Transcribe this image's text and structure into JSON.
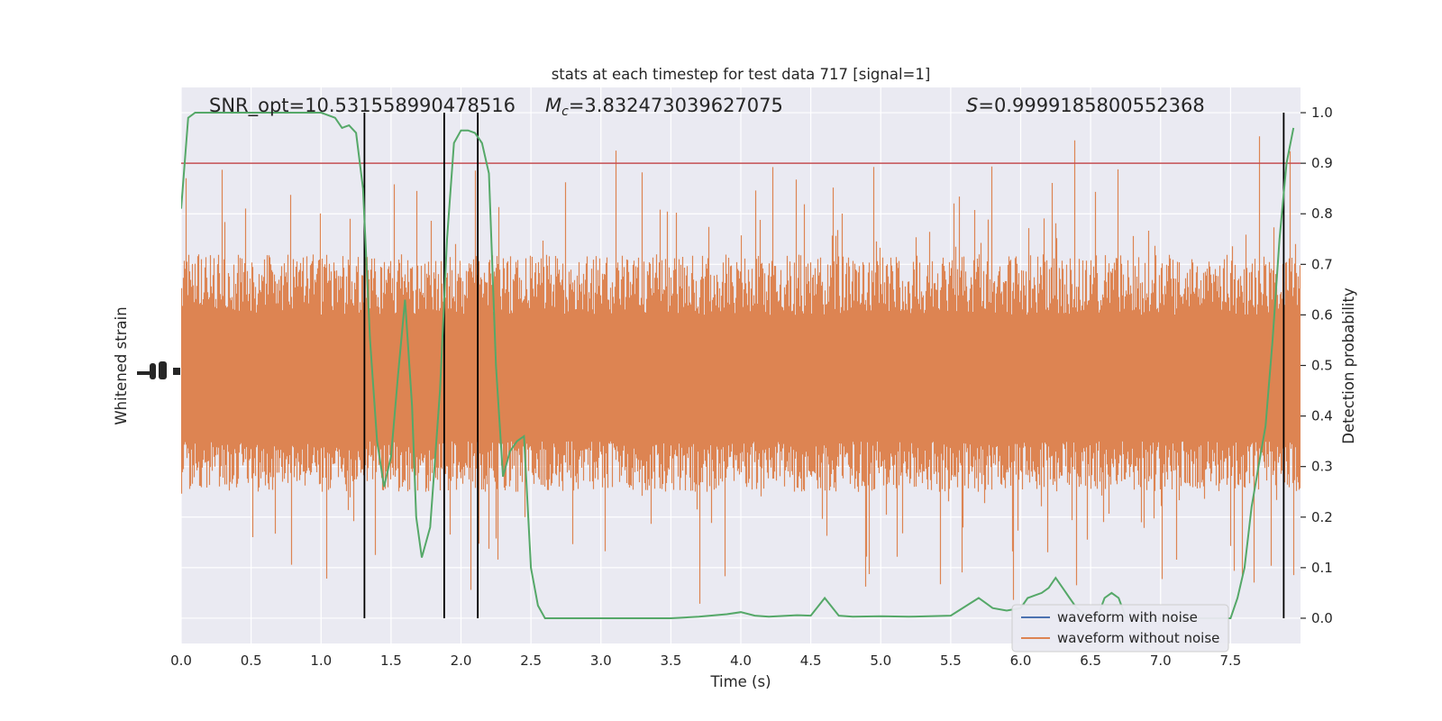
{
  "chart_data": {
    "type": "line",
    "title": "stats at each timestep for test data 717 [signal=1]",
    "xlabel": "Time (s)",
    "ylabel_left": "Whitened strain",
    "ylabel_right": "Detection probability",
    "xlim": [
      0.0,
      8.0
    ],
    "ylim_right": [
      -0.05,
      1.05
    ],
    "x_ticks": [
      0.0,
      0.5,
      1.0,
      1.5,
      2.0,
      2.5,
      3.0,
      3.5,
      4.0,
      4.5,
      5.0,
      5.5,
      6.0,
      6.5,
      7.0,
      7.5
    ],
    "x_tick_labels": [
      "0.0",
      "0.5",
      "1.0",
      "1.5",
      "2.0",
      "2.5",
      "3.0",
      "3.5",
      "4.0",
      "4.5",
      "5.0",
      "5.5",
      "6.0",
      "6.5",
      "7.0",
      "7.5"
    ],
    "y_right_ticks": [
      0.0,
      0.1,
      0.2,
      0.3,
      0.4,
      0.5,
      0.6,
      0.7,
      0.8,
      0.9,
      1.0
    ],
    "y_right_tick_labels": [
      "0.0",
      "0.1",
      "0.2",
      "0.3",
      "0.4",
      "0.5",
      "0.6",
      "0.7",
      "0.8",
      "0.9",
      "1.0"
    ],
    "grid": true,
    "legend_position": "lower-right",
    "annotations": {
      "snr": "SNR_opt=10.531558990478516",
      "mc_symbol": "M",
      "mc_subscript": "c",
      "mc_value": "=3.832473039627075",
      "s_symbol": "S",
      "s_value": "=0.9999185800552368"
    },
    "series": [
      {
        "name": "waveform with noise",
        "axis": "left",
        "color": "#4c72b0",
        "values": []
      },
      {
        "name": "waveform without noise",
        "axis": "left",
        "color": "#dd8452",
        "style": "dense-noise",
        "band_core": [
          0.35,
          0.6
        ],
        "band_typical": [
          0.25,
          0.72
        ],
        "spike_extremes": [
          0.0,
          1.0
        ]
      },
      {
        "name": "Detection probability",
        "axis": "right",
        "color": "#55a868",
        "x": [
          0.0,
          0.05,
          0.1,
          0.2,
          0.5,
          0.8,
          1.0,
          1.1,
          1.15,
          1.2,
          1.25,
          1.3,
          1.35,
          1.4,
          1.45,
          1.5,
          1.55,
          1.6,
          1.65,
          1.68,
          1.72,
          1.78,
          1.85,
          1.9,
          1.95,
          2.0,
          2.05,
          2.1,
          2.15,
          2.2,
          2.25,
          2.3,
          2.35,
          2.4,
          2.45,
          2.5,
          2.55,
          2.6,
          3.0,
          3.5,
          3.7,
          3.9,
          4.0,
          4.1,
          4.2,
          4.4,
          4.5,
          4.6,
          4.7,
          4.8,
          5.0,
          5.2,
          5.5,
          5.7,
          5.75,
          5.8,
          5.9,
          6.0,
          6.05,
          6.1,
          6.15,
          6.2,
          6.25,
          6.3,
          6.35,
          6.4,
          6.45,
          6.5,
          6.55,
          6.6,
          6.65,
          6.7,
          6.75,
          6.8,
          7.0,
          7.5,
          7.55,
          7.6,
          7.65,
          7.7,
          7.75,
          7.8,
          7.85,
          7.9,
          7.95
        ],
        "y": [
          0.81,
          0.99,
          1.0,
          1.0,
          1.0,
          1.0,
          1.0,
          0.99,
          0.97,
          0.975,
          0.96,
          0.85,
          0.55,
          0.35,
          0.26,
          0.32,
          0.48,
          0.63,
          0.42,
          0.2,
          0.12,
          0.18,
          0.45,
          0.75,
          0.94,
          0.965,
          0.965,
          0.96,
          0.94,
          0.88,
          0.5,
          0.28,
          0.33,
          0.35,
          0.36,
          0.1,
          0.025,
          0.0,
          0.0,
          0.0,
          0.003,
          0.008,
          0.012,
          0.005,
          0.003,
          0.006,
          0.005,
          0.04,
          0.005,
          0.003,
          0.004,
          0.003,
          0.005,
          0.04,
          0.03,
          0.02,
          0.015,
          0.02,
          0.04,
          0.045,
          0.05,
          0.06,
          0.08,
          0.06,
          0.04,
          0.02,
          0.01,
          0.005,
          0.003,
          0.04,
          0.05,
          0.04,
          0.003,
          0.0,
          0.0,
          0.0,
          0.04,
          0.1,
          0.22,
          0.3,
          0.38,
          0.55,
          0.75,
          0.9,
          0.97
        ]
      }
    ],
    "vertical_lines_x": [
      1.31,
      1.88,
      2.12,
      7.88
    ],
    "vertical_line_color": "#000000",
    "threshold_y": 0.9,
    "threshold_color": "#c44e52",
    "background_color": "#eaeaf2",
    "grid_color": "#ffffff"
  }
}
